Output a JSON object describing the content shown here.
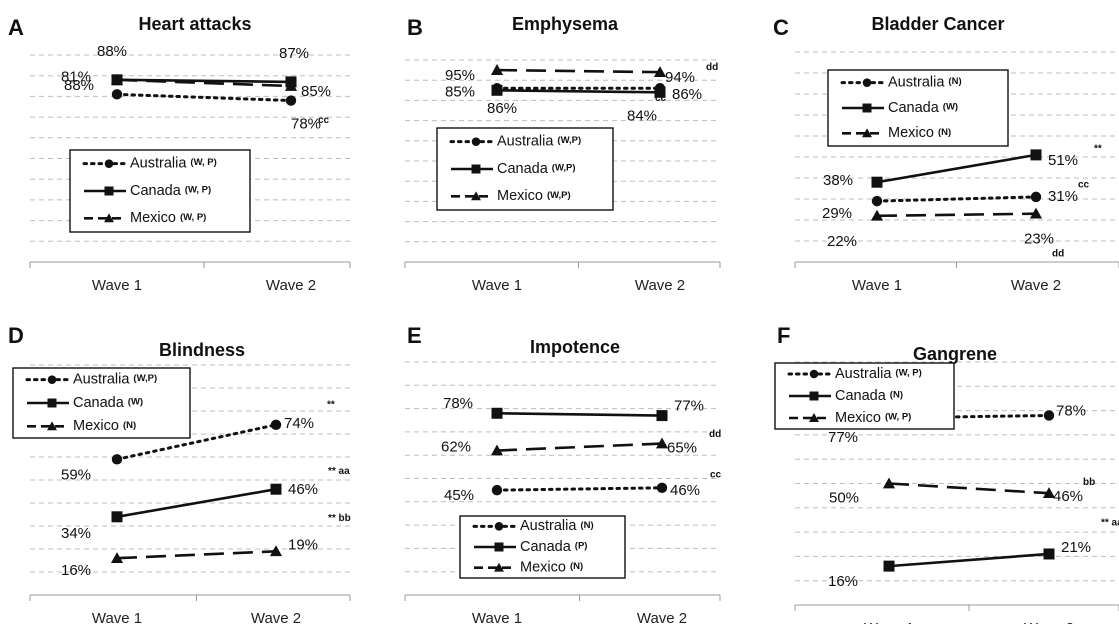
{
  "figure": {
    "colors": {
      "line": "#111111",
      "grid": "#bdbdbd",
      "axis": "#9a9a9a"
    },
    "x_categories": [
      "Wave 1",
      "Wave 2"
    ]
  },
  "chart_data": [
    {
      "type": "line",
      "panel_letter": "A",
      "title": "Heart attacks",
      "categories": [
        "Wave 1",
        "Wave 2"
      ],
      "ylim": [
        0,
        100
      ],
      "legend_placement": "bottom-left",
      "series": [
        {
          "name": "Australia",
          "annotation": "(W, P)",
          "marker": "circle",
          "dash": "dotted",
          "values": [
            81,
            78
          ],
          "labels": [
            "81%",
            "78%"
          ],
          "sig": [
            "",
            "cc"
          ]
        },
        {
          "name": "Canada",
          "annotation": "(W, P)",
          "marker": "square",
          "dash": "solid",
          "values": [
            88,
            87
          ],
          "labels": [
            "88%",
            "87%"
          ],
          "sig": [
            "",
            ""
          ]
        },
        {
          "name": "Mexico",
          "annotation": "(W, P)",
          "marker": "triangle",
          "dash": "dashed",
          "values": [
            88,
            85
          ],
          "labels": [
            "88%",
            "85%"
          ],
          "sig": [
            "",
            ""
          ]
        }
      ]
    },
    {
      "type": "line",
      "panel_letter": "B",
      "title": "Emphysema",
      "categories": [
        "Wave 1",
        "Wave 2"
      ],
      "ylim": [
        0,
        100
      ],
      "legend_placement": "bottom-left",
      "series": [
        {
          "name": "Australia",
          "annotation": "(W,P)",
          "marker": "circle",
          "dash": "dotted",
          "values": [
            86,
            86
          ],
          "labels": [
            "86%",
            "86%"
          ],
          "sig": [
            "",
            ""
          ]
        },
        {
          "name": "Canada",
          "annotation": "(W,P)",
          "marker": "square",
          "dash": "solid",
          "values": [
            85,
            84
          ],
          "labels": [
            "85%",
            "84%"
          ],
          "sig": [
            "",
            "cc"
          ]
        },
        {
          "name": "Mexico",
          "annotation": "(W,P)",
          "marker": "triangle",
          "dash": "dashed",
          "values": [
            95,
            94
          ],
          "labels": [
            "95%",
            "94%"
          ],
          "sig": [
            "",
            "dd"
          ]
        }
      ]
    },
    {
      "type": "line",
      "panel_letter": "C",
      "title": "Bladder Cancer",
      "categories": [
        "Wave 1",
        "Wave 2"
      ],
      "ylim": [
        0,
        100
      ],
      "legend_placement": "top-left",
      "series": [
        {
          "name": "Australia",
          "annotation": "(N)",
          "marker": "circle",
          "dash": "dotted",
          "values": [
            29,
            31
          ],
          "labels": [
            "29%",
            "31%"
          ],
          "sig": [
            "",
            "cc"
          ]
        },
        {
          "name": "Canada",
          "annotation": "(W)",
          "marker": "square",
          "dash": "solid",
          "values": [
            38,
            51
          ],
          "labels": [
            "38%",
            "51%"
          ],
          "sig": [
            "",
            "**"
          ]
        },
        {
          "name": "Mexico",
          "annotation": "(N)",
          "marker": "triangle",
          "dash": "dashed",
          "values": [
            22,
            23
          ],
          "labels": [
            "22%",
            "23%"
          ],
          "sig": [
            "",
            "dd"
          ]
        }
      ]
    },
    {
      "type": "line",
      "panel_letter": "D",
      "title": "Blindness",
      "categories": [
        "Wave 1",
        "Wave 2"
      ],
      "ylim": [
        0,
        100
      ],
      "legend_placement": "top-left",
      "series": [
        {
          "name": "Australia",
          "annotation": "(W,P)",
          "marker": "circle",
          "dash": "dotted",
          "values": [
            59,
            74
          ],
          "labels": [
            "59%",
            "74%"
          ],
          "sig": [
            "",
            "**"
          ]
        },
        {
          "name": "Canada",
          "annotation": "(W)",
          "marker": "square",
          "dash": "solid",
          "values": [
            34,
            46
          ],
          "labels": [
            "34%",
            "46%"
          ],
          "sig": [
            "",
            "** aa"
          ]
        },
        {
          "name": "Mexico",
          "annotation": "(N)",
          "marker": "triangle",
          "dash": "dashed",
          "values": [
            16,
            19
          ],
          "labels": [
            "16%",
            "19%"
          ],
          "sig": [
            "",
            "** bb"
          ]
        }
      ]
    },
    {
      "type": "line",
      "panel_letter": "E",
      "title": "Impotence",
      "categories": [
        "Wave 1",
        "Wave 2"
      ],
      "ylim": [
        0,
        100
      ],
      "legend_placement": "bottom-left",
      "series": [
        {
          "name": "Australia",
          "annotation": "(N)",
          "marker": "circle",
          "dash": "dotted",
          "values": [
            45,
            46
          ],
          "labels": [
            "45%",
            "46%"
          ],
          "sig": [
            "",
            "cc"
          ]
        },
        {
          "name": "Canada",
          "annotation": "(P)",
          "marker": "square",
          "dash": "solid",
          "values": [
            78,
            77
          ],
          "labels": [
            "78%",
            "77%"
          ],
          "sig": [
            "",
            ""
          ]
        },
        {
          "name": "Mexico",
          "annotation": "(N)",
          "marker": "triangle",
          "dash": "dashed",
          "values": [
            62,
            65
          ],
          "labels": [
            "62%",
            "65%"
          ],
          "sig": [
            "",
            "dd"
          ]
        }
      ]
    },
    {
      "type": "line",
      "panel_letter": "F",
      "title": "Gangrene",
      "categories": [
        "Wave 1",
        "Wave 2"
      ],
      "ylim": [
        0,
        100
      ],
      "legend_placement": "top-left",
      "series": [
        {
          "name": "Australia",
          "annotation": "(W, P)",
          "marker": "circle",
          "dash": "dotted",
          "values": [
            77,
            78
          ],
          "labels": [
            "77%",
            "78%"
          ],
          "sig": [
            "",
            ""
          ]
        },
        {
          "name": "Canada",
          "annotation": "(N)",
          "marker": "square",
          "dash": "solid",
          "values": [
            16,
            21
          ],
          "labels": [
            "16%",
            "21%"
          ],
          "sig": [
            "",
            "** aa"
          ]
        },
        {
          "name": "Mexico",
          "annotation": "(W, P)",
          "marker": "triangle",
          "dash": "dashed",
          "values": [
            50,
            46
          ],
          "labels": [
            "50%",
            "46%"
          ],
          "sig": [
            "",
            "bb"
          ]
        }
      ]
    }
  ]
}
